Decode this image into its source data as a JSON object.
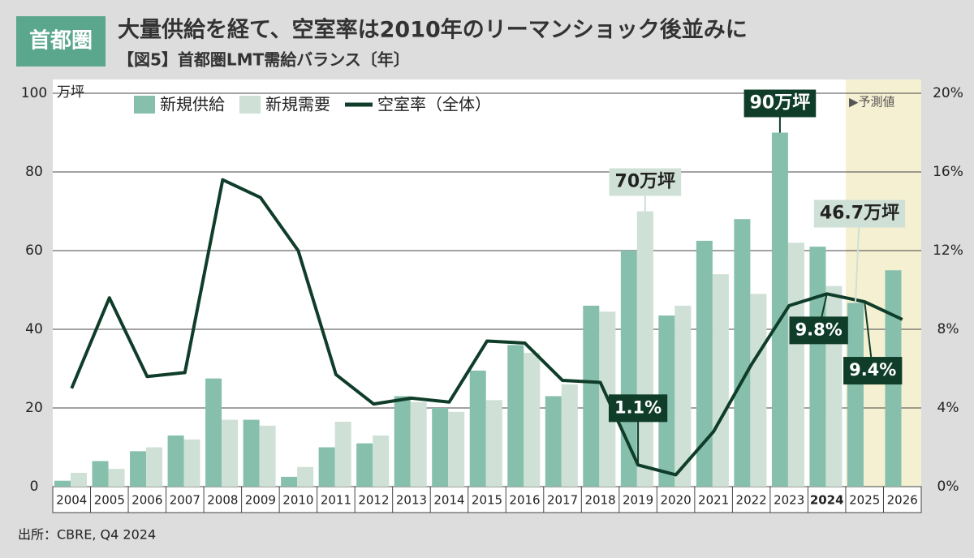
{
  "badge": "首都圏",
  "chart_data": {
    "type": "bar_line",
    "title": "大量供給を経て、空室率は2010年のリーマンショック後並みに",
    "subtitle": "【図5】首都圏LMT需給バランス〔年〕",
    "y_unit": "万坪",
    "source": "出所：CBRE, Q4 2024",
    "categories": [
      "2004",
      "2005",
      "2006",
      "2007",
      "2008",
      "2009",
      "2010",
      "2011",
      "2012",
      "2013",
      "2014",
      "2015",
      "2016",
      "2017",
      "2018",
      "2019",
      "2020",
      "2021",
      "2022",
      "2023",
      "2024",
      "2025",
      "2026"
    ],
    "series": [
      {
        "name": "新規供給",
        "color": "#86bfac",
        "type": "bar",
        "values": [
          1.5,
          6.5,
          9,
          13,
          27.5,
          17,
          2.5,
          10,
          11,
          23,
          20,
          29.5,
          36,
          23,
          46,
          60,
          43.5,
          62.5,
          68,
          90,
          61,
          46.7,
          55
        ],
        "value_labels": [
          null,
          null,
          null,
          null,
          null,
          null,
          null,
          null,
          null,
          null,
          null,
          null,
          null,
          null,
          null,
          null,
          null,
          null,
          null,
          "90万坪",
          null,
          "46.7万坪",
          null
        ]
      },
      {
        "name": "新規需要",
        "color": "#cfe0d6",
        "type": "bar",
        "values": [
          3.5,
          4.5,
          10,
          12,
          17,
          15.5,
          5,
          16.5,
          13,
          21.5,
          19,
          22,
          34,
          26,
          44.5,
          70,
          46,
          54,
          49,
          62,
          51,
          null,
          null
        ],
        "value_labels": [
          null,
          null,
          null,
          null,
          null,
          null,
          null,
          null,
          null,
          null,
          null,
          null,
          null,
          null,
          null,
          "70万坪",
          null,
          null,
          null,
          null,
          null,
          null,
          null
        ]
      },
      {
        "name": "空室率（全体）",
        "color": "#0f3d2a",
        "type": "line",
        "axis": "y2",
        "values": [
          5.0,
          9.6,
          5.6,
          5.8,
          15.6,
          14.7,
          12.0,
          5.7,
          4.2,
          4.5,
          4.3,
          7.4,
          7.3,
          5.4,
          5.3,
          1.1,
          0.6,
          2.8,
          6.2,
          9.2,
          9.8,
          9.4,
          8.5
        ],
        "value_labels": [
          null,
          null,
          null,
          null,
          null,
          null,
          null,
          null,
          null,
          null,
          null,
          null,
          null,
          null,
          null,
          "1.1%",
          null,
          null,
          null,
          null,
          "9.8%",
          "9.4%",
          null
        ]
      }
    ],
    "ylim": [
      0,
      100
    ],
    "yticks": [
      0,
      20,
      40,
      60,
      80,
      100
    ],
    "y2lim": [
      0,
      20
    ],
    "y2ticks": [
      {
        "value": 0,
        "label": "0%"
      },
      {
        "value": 4,
        "label": "4%"
      },
      {
        "value": 8,
        "label": "8%"
      },
      {
        "value": 12,
        "label": "12%"
      },
      {
        "value": 16,
        "label": "16%"
      },
      {
        "value": 20,
        "label": "20%"
      }
    ],
    "grid": true,
    "forecast": {
      "label": "▶予測値",
      "from": "2025"
    }
  }
}
